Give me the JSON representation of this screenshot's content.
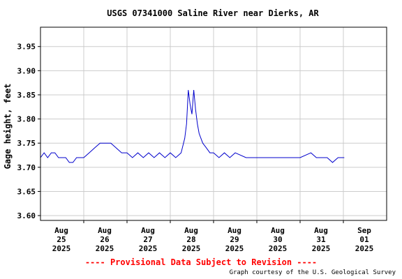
{
  "chart_data": {
    "type": "line",
    "title": "USGS 07341000 Saline River near Dierks, AR",
    "ylabel": "Gage height, feet",
    "xlabel": "",
    "ylim": [
      3.59,
      3.99
    ],
    "xlim_days": [
      "Aug 25 2025 00:00",
      "Sep 01 2025 12:00"
    ],
    "grid": true,
    "y_ticks": [
      "3.60",
      "3.65",
      "3.70",
      "3.75",
      "3.80",
      "3.85",
      "3.90",
      "3.95"
    ],
    "x_ticks": [
      {
        "month": "Aug",
        "day": "25",
        "year": "2025"
      },
      {
        "month": "Aug",
        "day": "26",
        "year": "2025"
      },
      {
        "month": "Aug",
        "day": "27",
        "year": "2025"
      },
      {
        "month": "Aug",
        "day": "28",
        "year": "2025"
      },
      {
        "month": "Aug",
        "day": "29",
        "year": "2025"
      },
      {
        "month": "Aug",
        "day": "30",
        "year": "2025"
      },
      {
        "month": "Aug",
        "day": "31",
        "year": "2025"
      },
      {
        "month": "Sep",
        "day": "01",
        "year": "2025"
      }
    ],
    "series": [
      {
        "color": "#0000cc",
        "x": [
          "2025-08-25 00:00",
          "2025-08-25 02:00",
          "2025-08-25 04:00",
          "2025-08-25 06:00",
          "2025-08-25 08:00",
          "2025-08-25 10:00",
          "2025-08-25 12:00",
          "2025-08-25 14:00",
          "2025-08-25 16:00",
          "2025-08-25 18:00",
          "2025-08-25 20:00",
          "2025-08-25 22:00",
          "2025-08-26 00:00",
          "2025-08-26 03:00",
          "2025-08-26 06:00",
          "2025-08-26 09:00",
          "2025-08-26 12:00",
          "2025-08-26 15:00",
          "2025-08-26 18:00",
          "2025-08-26 21:00",
          "2025-08-27 00:00",
          "2025-08-27 03:00",
          "2025-08-27 06:00",
          "2025-08-27 09:00",
          "2025-08-27 12:00",
          "2025-08-27 15:00",
          "2025-08-27 18:00",
          "2025-08-27 21:00",
          "2025-08-28 00:00",
          "2025-08-28 03:00",
          "2025-08-28 06:00",
          "2025-08-28 08:00",
          "2025-08-28 09:00",
          "2025-08-28 10:00",
          "2025-08-28 11:00",
          "2025-08-28 12:00",
          "2025-08-28 13:00",
          "2025-08-28 14:00",
          "2025-08-28 15:00",
          "2025-08-28 16:00",
          "2025-08-28 17:00",
          "2025-08-28 18:00",
          "2025-08-28 20:00",
          "2025-08-28 22:00",
          "2025-08-29 00:00",
          "2025-08-29 03:00",
          "2025-08-29 06:00",
          "2025-08-29 09:00",
          "2025-08-29 12:00",
          "2025-08-29 18:00",
          "2025-08-30 00:00",
          "2025-08-30 06:00",
          "2025-08-30 12:00",
          "2025-08-30 18:00",
          "2025-08-31 00:00",
          "2025-08-31 06:00",
          "2025-08-31 09:00",
          "2025-08-31 12:00",
          "2025-08-31 15:00",
          "2025-08-31 18:00",
          "2025-08-31 21:00",
          "2025-09-01 00:00",
          "2025-09-01 00:30"
        ],
        "y": [
          3.72,
          3.73,
          3.72,
          3.73,
          3.73,
          3.72,
          3.72,
          3.72,
          3.71,
          3.71,
          3.72,
          3.72,
          3.72,
          3.73,
          3.74,
          3.75,
          3.75,
          3.75,
          3.74,
          3.73,
          3.73,
          3.72,
          3.73,
          3.72,
          3.73,
          3.72,
          3.73,
          3.72,
          3.73,
          3.72,
          3.73,
          3.76,
          3.79,
          3.86,
          3.83,
          3.81,
          3.86,
          3.82,
          3.79,
          3.77,
          3.76,
          3.75,
          3.74,
          3.73,
          3.73,
          3.72,
          3.73,
          3.72,
          3.73,
          3.72,
          3.72,
          3.72,
          3.72,
          3.72,
          3.72,
          3.73,
          3.72,
          3.72,
          3.72,
          3.71,
          3.72,
          3.72,
          3.72
        ]
      }
    ]
  },
  "footer": {
    "provisional": "---- Provisional Data Subject to Revision ----",
    "credit": "Graph courtesy of the U.S. Geological Survey"
  }
}
